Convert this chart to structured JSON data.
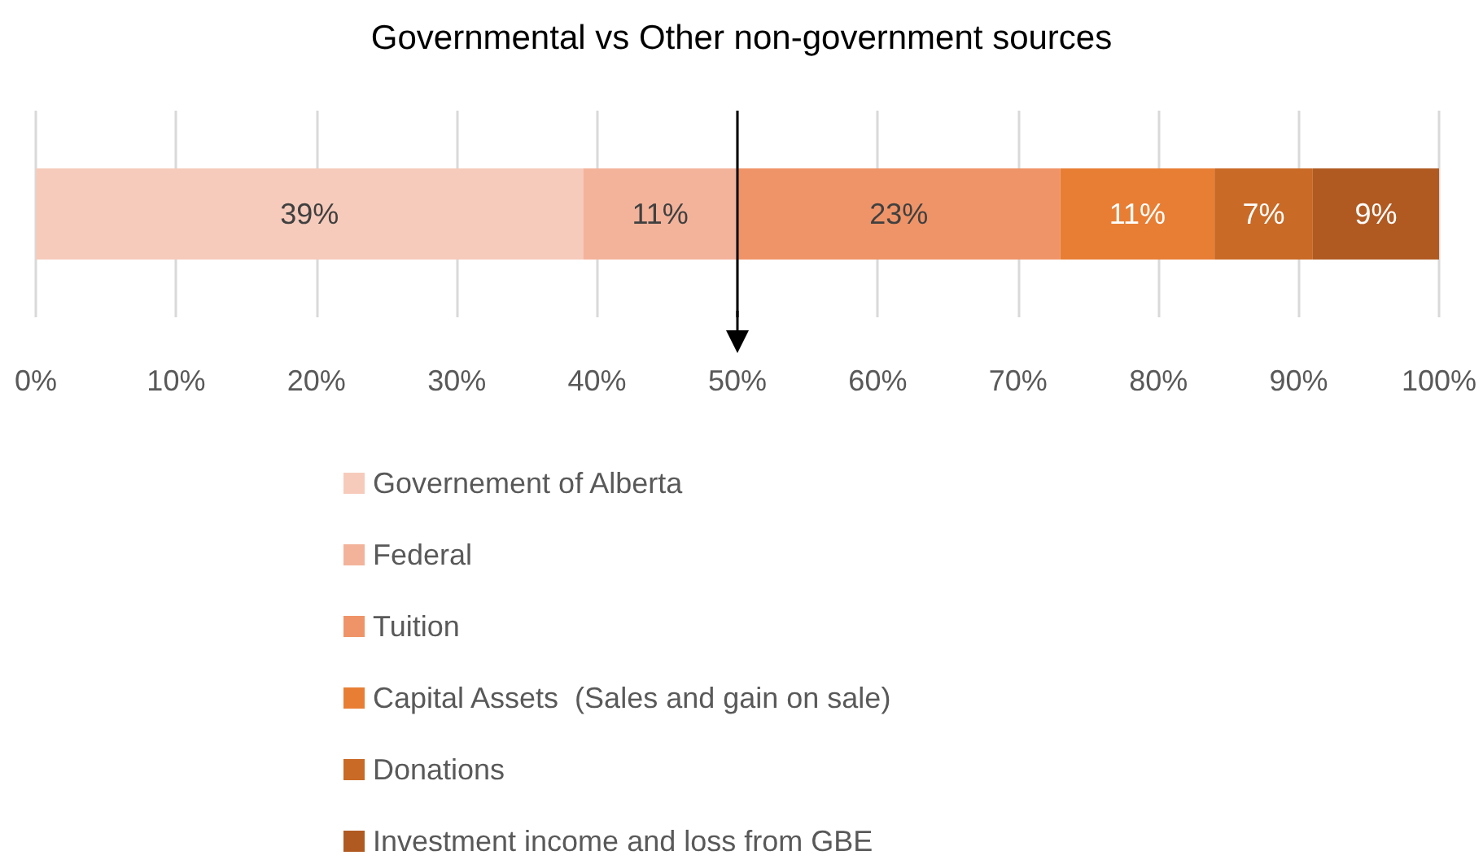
{
  "chart_data": {
    "type": "bar",
    "orientation": "horizontal",
    "stacked": true,
    "title": "Governmental vs Other non-government sources",
    "categories": [
      null
    ],
    "series": [
      {
        "name": "Governement of Alberta",
        "color": "#f6cbbb",
        "values": [
          39
        ],
        "value_labels": [
          "39%"
        ]
      },
      {
        "name": "Federal",
        "color": "#f3b39b",
        "values": [
          11
        ],
        "value_labels": [
          "11%"
        ]
      },
      {
        "name": "Tuition",
        "color": "#ef9468",
        "values": [
          23
        ],
        "value_labels": [
          "23%"
        ]
      },
      {
        "name": "Capital Assets  (Sales and gain on sale)",
        "color": "#e87e34",
        "values": [
          11
        ],
        "value_labels": [
          "11%"
        ]
      },
      {
        "name": "Donations",
        "color": "#c96a26",
        "values": [
          7
        ],
        "value_labels": [
          "7%"
        ]
      },
      {
        "name": "Investment income and loss from GBE",
        "color": "#b05a22",
        "values": [
          9
        ],
        "value_labels": [
          "9%"
        ]
      }
    ],
    "xlim": [
      0,
      100
    ],
    "xticks": [
      {
        "value": 0,
        "label": "0%"
      },
      {
        "value": 10,
        "label": "10%"
      },
      {
        "value": 20,
        "label": "20%"
      },
      {
        "value": 30,
        "label": "30%"
      },
      {
        "value": 40,
        "label": "40%"
      },
      {
        "value": 50,
        "label": "50%"
      },
      {
        "value": 60,
        "label": "60%"
      },
      {
        "value": 70,
        "label": "70%"
      },
      {
        "value": 80,
        "label": "80%"
      },
      {
        "value": 90,
        "label": "90%"
      },
      {
        "value": 100,
        "label": "100%"
      }
    ],
    "ref_lines": [
      {
        "axis": "x",
        "value": 50,
        "color": "#000000"
      }
    ],
    "grid": "x",
    "legend": "bottom"
  }
}
